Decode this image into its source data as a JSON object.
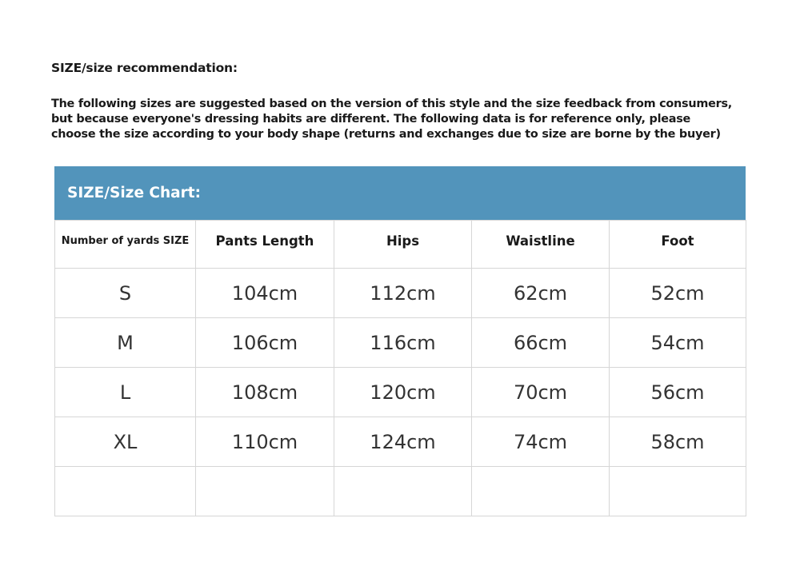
{
  "recommendation": {
    "title": "SIZE/size recommendation:",
    "text": "The following sizes are suggested based on the version of this style and the size feedback from consumers,\nbut because everyone's dressing habits are different. The following data is for reference only, please\nchoose the size according to your body shape (returns and exchanges due to size are borne by the buyer)"
  },
  "size_chart": {
    "title": "SIZE/Size Chart:",
    "header_color": "#5294bb",
    "columns": [
      "Number of yards SIZE",
      "Pants Length",
      "Hips",
      "Waistline",
      "Foot"
    ],
    "rows": [
      [
        "S",
        "104cm",
        "112cm",
        "62cm",
        "52cm"
      ],
      [
        "M",
        "106cm",
        "116cm",
        "66cm",
        "54cm"
      ],
      [
        "L",
        "108cm",
        "120cm",
        "70cm",
        "56cm"
      ],
      [
        "XL",
        "110cm",
        "124cm",
        "74cm",
        "58cm"
      ],
      [
        "",
        "",
        "",
        "",
        ""
      ]
    ]
  }
}
